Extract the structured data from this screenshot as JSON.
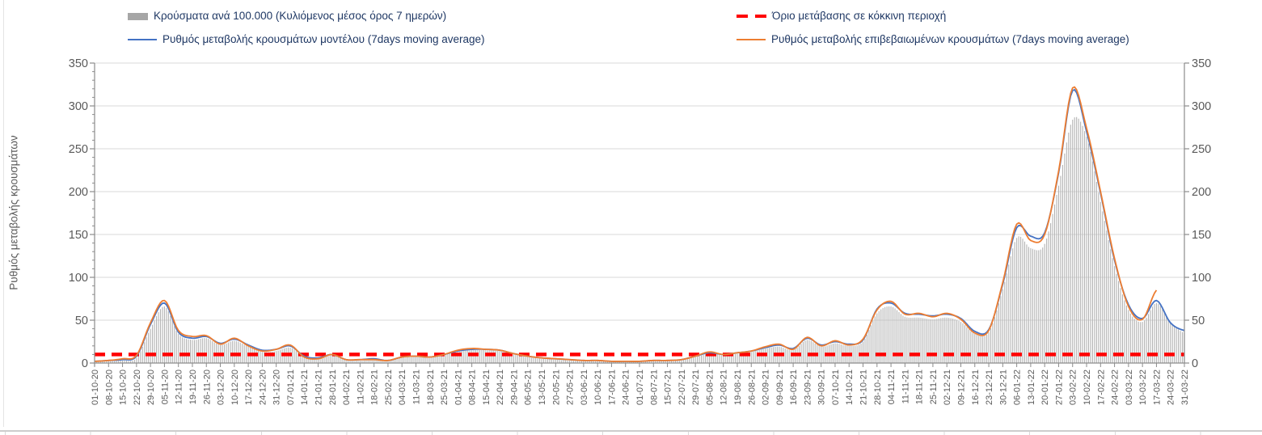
{
  "colors": {
    "bars": "#b3b3b3",
    "bars_legend_swatch": "#a6a6a6",
    "model_line": "#4472c4",
    "confirmed_line": "#ed7d31",
    "threshold": "#ff0000",
    "grid": "#d9d9d9",
    "axis": "#8c8c8c",
    "tick_text": "#595959",
    "legend_text": "#1f3864"
  },
  "chart_data": {
    "type": "bar+line combo",
    "title": "",
    "xlabel": "",
    "ylabel": "Ρυθμός μεταβολής κρουσμάτων",
    "ylim": [
      0,
      350
    ],
    "ytick_step": 50,
    "y_minor_step": 10,
    "grid": true,
    "legend_position": "top",
    "secondary_y_axis": true,
    "threshold": {
      "label": "Όριο μετάβασης σε κόκκινη περιοχή",
      "value": 10,
      "style": "dashed",
      "color": "#ff0000"
    },
    "categories": [
      "01-10-20",
      "08-10-20",
      "15-10-20",
      "22-10-20",
      "29-10-20",
      "05-11-20",
      "12-11-20",
      "19-11-20",
      "26-11-20",
      "03-12-20",
      "10-12-20",
      "17-12-20",
      "24-12-20",
      "31-12-20",
      "07-01-21",
      "14-01-21",
      "21-01-21",
      "28-01-21",
      "04-02-21",
      "11-02-21",
      "18-02-21",
      "25-02-21",
      "04-03-21",
      "11-03-21",
      "18-03-21",
      "25-03-21",
      "01-04-21",
      "08-04-21",
      "15-04-21",
      "22-04-21",
      "29-04-21",
      "06-05-21",
      "13-05-21",
      "20-05-21",
      "27-05-21",
      "03-06-21",
      "10-06-21",
      "17-06-21",
      "24-06-21",
      "01-07-21",
      "08-07-21",
      "15-07-21",
      "22-07-21",
      "29-07-21",
      "05-08-21",
      "12-08-21",
      "19-08-21",
      "26-08-21",
      "02-09-21",
      "09-09-21",
      "16-09-21",
      "23-09-21",
      "30-09-21",
      "07-10-21",
      "14-10-21",
      "21-10-21",
      "28-10-21",
      "04-11-21",
      "11-11-21",
      "18-11-21",
      "25-11-21",
      "02-12-21",
      "09-12-21",
      "16-12-21",
      "23-12-21",
      "30-12-21",
      "06-01-22",
      "13-01-22",
      "20-01-22",
      "27-01-22",
      "03-02-22",
      "10-02-22",
      "17-02-22",
      "24-02-22",
      "03-03-22",
      "10-03-22",
      "17-03-22",
      "24-03-22",
      "31-03-22"
    ],
    "series": [
      {
        "name": "Κρούσματα ανά 100.000 (Κυλιόμενος μέσος όρος 7 ημερών)",
        "type": "bar",
        "color": "#b3b3b3",
        "values": [
          1,
          2,
          3,
          6,
          40,
          66,
          34,
          27,
          29,
          21,
          26,
          19,
          13,
          14,
          18,
          7,
          5,
          9,
          3,
          3,
          4,
          3,
          6,
          7,
          6,
          9,
          13,
          15,
          15,
          14,
          10,
          7,
          5,
          4,
          3,
          3,
          2,
          2,
          2,
          2,
          3,
          3,
          4,
          7,
          11,
          9,
          11,
          13,
          17,
          19,
          15,
          27,
          19,
          23,
          20,
          25,
          58,
          66,
          54,
          53,
          51,
          53,
          48,
          34,
          36,
          86,
          146,
          134,
          139,
          207,
          284,
          264,
          188,
          113,
          62,
          48,
          70,
          48,
          35
        ]
      },
      {
        "name": "Ρυθμός μεταβολής κρουσμάτων μοντέλου (7days moving average)",
        "type": "line",
        "color": "#4472c4",
        "values": [
          2,
          3,
          4,
          8,
          45,
          70,
          36,
          29,
          31,
          23,
          28,
          21,
          15,
          16,
          20,
          8,
          6,
          10,
          4,
          4,
          5,
          3,
          7,
          8,
          7,
          10,
          14,
          16,
          16,
          15,
          11,
          8,
          6,
          5,
          4,
          3,
          3,
          2,
          2,
          2,
          3,
          3,
          4,
          8,
          12,
          10,
          12,
          14,
          18,
          21,
          17,
          29,
          21,
          25,
          22,
          27,
          63,
          70,
          58,
          57,
          55,
          57,
          52,
          37,
          39,
          92,
          158,
          148,
          152,
          222,
          318,
          270,
          198,
          120,
          68,
          52,
          73,
          47,
          38
        ]
      },
      {
        "name": "Ρυθμός μεταβολής επιβεβαιωμένων κρουσμάτων (7days moving average)",
        "type": "line",
        "color": "#ed7d31",
        "values": [
          2,
          3,
          5,
          9,
          47,
          73,
          38,
          31,
          32,
          22,
          29,
          20,
          14,
          16,
          21,
          7,
          5,
          10,
          4,
          4,
          4,
          3,
          7,
          8,
          7,
          10,
          15,
          17,
          16,
          15,
          11,
          8,
          6,
          5,
          4,
          3,
          3,
          2,
          2,
          2,
          3,
          3,
          4,
          8,
          13,
          10,
          12,
          14,
          19,
          22,
          16,
          30,
          20,
          26,
          21,
          28,
          62,
          72,
          57,
          58,
          54,
          58,
          51,
          35,
          38,
          94,
          162,
          143,
          150,
          224,
          321,
          274,
          200,
          122,
          66,
          51,
          85,
          null,
          null
        ]
      }
    ]
  }
}
